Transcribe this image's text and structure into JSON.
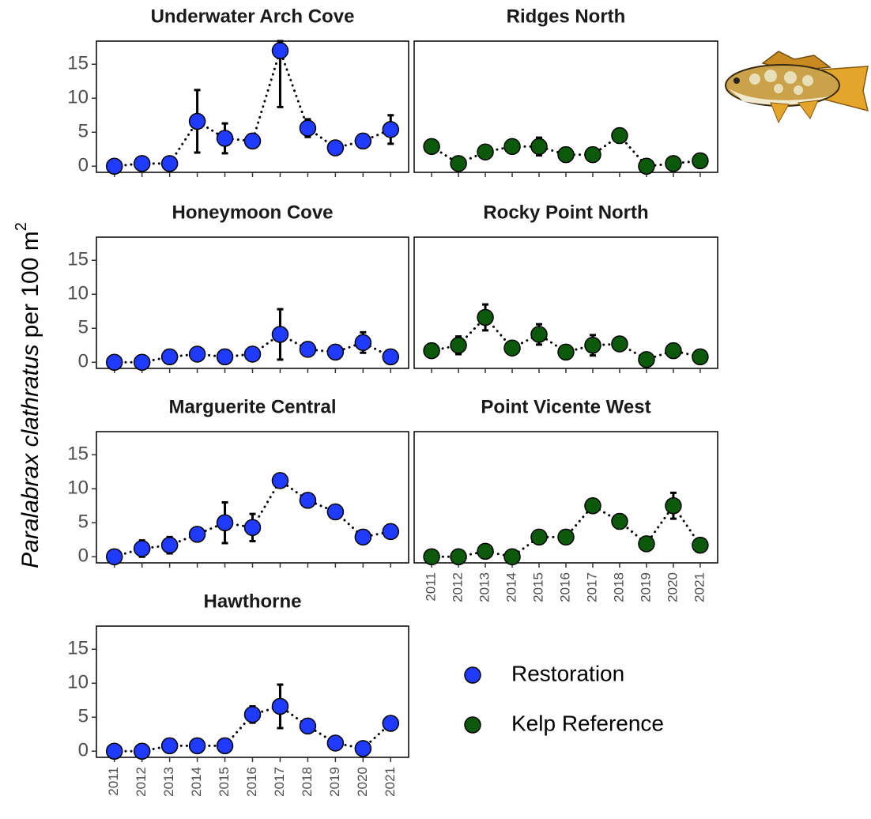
{
  "chart_data": {
    "type": "line",
    "ylabel": {
      "italic": "Paralabrax clathratus",
      "text": "per 100 m",
      "sup": "2"
    },
    "x": [
      2011,
      2012,
      2013,
      2014,
      2015,
      2016,
      2017,
      2018,
      2019,
      2020,
      2021
    ],
    "xlim": [
      2010.35,
      2021.65
    ],
    "xticks": [
      2011,
      2012,
      2013,
      2014,
      2015,
      2016,
      2017,
      2018,
      2019,
      2020,
      2021
    ],
    "ylim": [
      -0.9,
      18.4
    ],
    "yticks": [
      0,
      5,
      10,
      15
    ],
    "groups": [
      {
        "name": "Restoration",
        "color": "#1f3bff"
      },
      {
        "name": "Kelp Reference",
        "color": "#0b5a0b"
      }
    ],
    "panels": [
      {
        "title": "Underwater Arch Cove",
        "group": 0,
        "values": [
          0,
          0.4,
          0.4,
          6.6,
          4.1,
          3.7,
          17,
          5.6,
          2.7,
          3.7,
          5.4
        ],
        "errors": [
          null,
          null,
          null,
          4.6,
          2.2,
          null,
          8.3,
          1.3,
          null,
          0.5,
          2.1
        ]
      },
      {
        "title": "Ridges North",
        "group": 1,
        "values": [
          2.9,
          0.4,
          2.1,
          2.9,
          2.9,
          1.7,
          1.7,
          4.5,
          0,
          0.4,
          0.8
        ],
        "errors": [
          null,
          null,
          null,
          0.3,
          1.3,
          1.0,
          1.0,
          1.0,
          null,
          null,
          null
        ]
      },
      {
        "title": "Honeymoon Cove",
        "group": 0,
        "values": [
          0,
          0,
          0.8,
          1.2,
          0.8,
          1.2,
          4.1,
          1.9,
          1.5,
          2.9,
          0.8
        ],
        "errors": [
          null,
          null,
          null,
          null,
          null,
          null,
          3.7,
          null,
          null,
          1.5,
          null
        ]
      },
      {
        "title": "Rocky Point North",
        "group": 1,
        "values": [
          1.7,
          2.5,
          6.6,
          2.1,
          4.1,
          1.5,
          2.5,
          2.7,
          0.4,
          1.7,
          0.8
        ],
        "errors": [
          null,
          1.3,
          1.9,
          null,
          1.5,
          null,
          1.5,
          null,
          null,
          null,
          null
        ]
      },
      {
        "title": "Marguerite Central",
        "group": 0,
        "values": [
          0,
          1.2,
          1.7,
          3.3,
          5.0,
          4.3,
          11.2,
          8.3,
          6.6,
          2.9,
          3.7
        ],
        "errors": [
          null,
          1.2,
          1.2,
          null,
          3.0,
          2.0,
          null,
          null,
          null,
          1.0,
          null
        ]
      },
      {
        "title": "Point Vicente West",
        "group": 1,
        "values": [
          0,
          0,
          0.8,
          0,
          2.9,
          2.9,
          7.5,
          5.2,
          1.9,
          7.5,
          1.7
        ],
        "errors": [
          null,
          null,
          null,
          null,
          null,
          null,
          0.8,
          1.0,
          null,
          1.9,
          1.0
        ]
      },
      {
        "title": "Hawthorne",
        "group": 0,
        "values": [
          0,
          0,
          0.8,
          0.8,
          0.8,
          5.4,
          6.6,
          3.7,
          1.2,
          0.4,
          4.1
        ],
        "errors": [
          null,
          null,
          null,
          null,
          null,
          1.2,
          3.2,
          null,
          null,
          null,
          null
        ]
      }
    ]
  }
}
